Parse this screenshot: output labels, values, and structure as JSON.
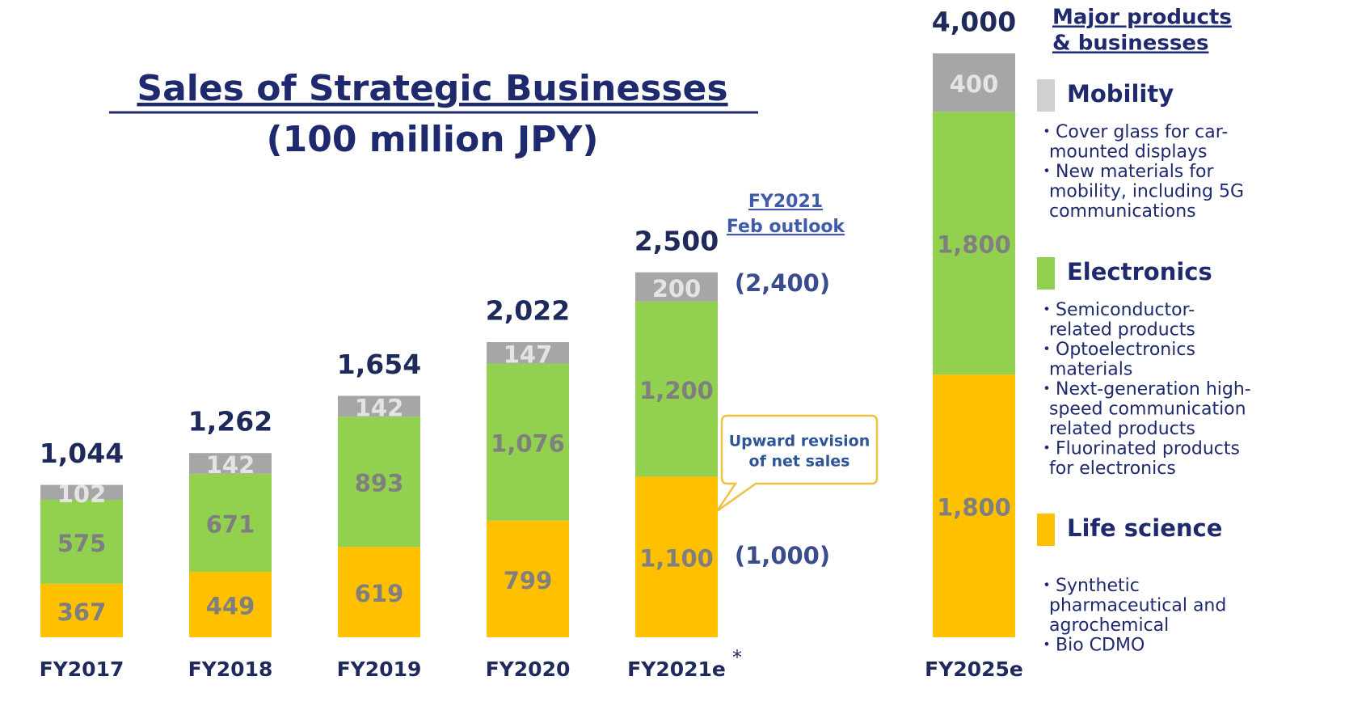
{
  "chart_data": {
    "type": "stacked_bar",
    "title": "Sales of Strategic Businesses",
    "subtitle": "(100 million JPY)",
    "categories": [
      "FY2017",
      "FY2018",
      "FY2019",
      "FY2020",
      "FY2021e",
      "FY2025e"
    ],
    "series": [
      {
        "name": "Life science",
        "color": "#FFC000",
        "values": [
          367,
          449,
          619,
          799,
          1100,
          1800
        ],
        "value_labels": [
          "367",
          "449",
          "619",
          "799",
          "1,100",
          "1,800"
        ]
      },
      {
        "name": "Electronics",
        "color": "#92D050",
        "values": [
          575,
          671,
          893,
          1076,
          1200,
          1800
        ],
        "value_labels": [
          "575",
          "671",
          "893",
          "1,076",
          "1,200",
          "1,800"
        ]
      },
      {
        "name": "Mobility",
        "color": "#A6A6A6",
        "values": [
          102,
          142,
          142,
          147,
          200,
          400
        ],
        "value_labels": [
          "102",
          "142",
          "142",
          "147",
          "200",
          "400"
        ]
      }
    ],
    "totals": [
      1044,
      1262,
      1654,
      2022,
      2500,
      4000
    ],
    "total_labels": [
      "1,044",
      "1,262",
      "1,654",
      "2,022",
      "2,500",
      "4,000"
    ],
    "ylim": [
      0,
      4000
    ],
    "annotations": {
      "outlook_heading": [
        "FY2021",
        "Feb outlook"
      ],
      "outlook_total": "(2,400)",
      "outlook_life": "(1,000)",
      "callout": [
        "Upward revision",
        "of net sales"
      ],
      "asterisk": "*"
    },
    "side_panel": {
      "title": [
        "Major products",
        "& businesses"
      ],
      "items": [
        {
          "legend_color": "#D0D0D0",
          "lines": [
            "・Cover glass for car-",
            "mounted displays",
            "・New materials for",
            "mobility, including 5G",
            "communications"
          ]
        },
        {
          "legend_color": "#92D050",
          "lines": [
            "・Semiconductor-",
            "related products",
            "・Optoelectronics",
            "materials",
            "・Next-generation high-",
            "speed communication",
            "related products",
            "・Fluorinated products",
            "for electronics"
          ]
        },
        {
          "legend_color": "#FFC000",
          "lines": [
            "・Synthetic",
            "pharmaceutical and",
            "agrochemical",
            "・Bio CDMO"
          ]
        }
      ]
    }
  }
}
